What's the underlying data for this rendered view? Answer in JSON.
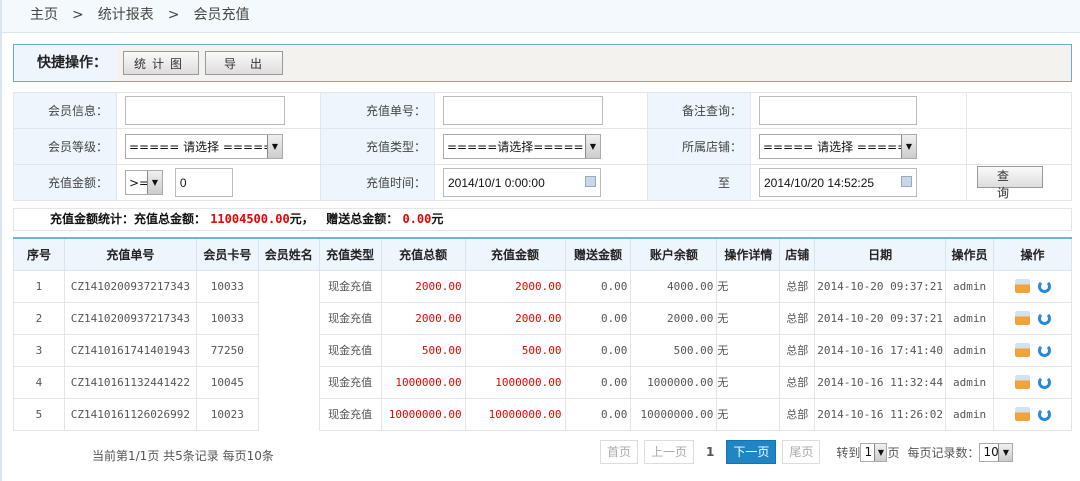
{
  "breadcrumb": [
    "主页",
    "统计报表",
    "会员充值"
  ],
  "breadcrumb_sep": ">",
  "quick": {
    "label": "快捷操作：",
    "chart_button": "统计图",
    "export_button": "导出"
  },
  "form": {
    "member_info_label": "会员信息：",
    "member_info_value": "",
    "order_no_label": "充值单号：",
    "order_no_value": "",
    "remark_label": "备注查询：",
    "remark_value": "",
    "level_label": "会员等级：",
    "level_value": "===== 请选择 =====",
    "type_label": "充值类型：",
    "type_value": "=====请选择=====",
    "store_label": "所属店铺：",
    "store_value": "===== 请选择 =====",
    "amount_label": "充值金额：",
    "amount_op": ">=",
    "amount_value": "0",
    "time_label": "充值时间：",
    "time_from": "2014/10/1 0:00:00",
    "to_label": "至",
    "time_to": "2014/10/20 14:52:25",
    "search_button": "查询"
  },
  "summary": {
    "label": "充值金额统计：充值总金额：",
    "total": "11004500.00",
    "unit1": "元，",
    "gift_label": "赠送总金额：",
    "gift": "0.00",
    "unit2": "元"
  },
  "table": {
    "headers": [
      "序号",
      "充值单号",
      "会员卡号",
      "会员姓名",
      "充值类型",
      "充值总额",
      "充值金额",
      "赠送金额",
      "账户余额",
      "操作详情",
      "店铺",
      "日期",
      "操作员",
      "操作"
    ],
    "rows": [
      [
        "1",
        "CZ1410200937217343",
        "10033",
        "",
        "现金充值",
        "2000.00",
        "2000.00",
        "0.00",
        "4000.00",
        "无",
        "总部",
        "2014-10-20 09:37:21",
        "admin"
      ],
      [
        "2",
        "CZ1410200937217343",
        "10033",
        "",
        "现金充值",
        "2000.00",
        "2000.00",
        "0.00",
        "2000.00",
        "无",
        "总部",
        "2014-10-20 09:37:21",
        "admin"
      ],
      [
        "3",
        "CZ1410161741401943",
        "77250",
        "",
        "现金充值",
        "500.00",
        "500.00",
        "0.00",
        "500.00",
        "无",
        "总部",
        "2014-10-16 17:41:40",
        "admin"
      ],
      [
        "4",
        "CZ1410161132441422",
        "10045",
        "",
        "现金充值",
        "1000000.00",
        "1000000.00",
        "0.00",
        "1000000.00",
        "无",
        "总部",
        "2014-10-16 11:32:44",
        "admin"
      ],
      [
        "5",
        "CZ1410161126026992",
        "10023",
        "",
        "现金充值",
        "10000000.00",
        "10000000.00",
        "0.00",
        "10000000.00",
        "无",
        "总部",
        "2014-10-16 11:26:02",
        "admin"
      ]
    ],
    "action_icons": [
      "print-icon",
      "refresh-icon"
    ]
  },
  "pager": {
    "info": "当前第1/1页 共5条记录 每页10条",
    "first": "首页",
    "prev": "上一页",
    "current": "1",
    "next": "下一页",
    "last": "尾页",
    "goto_label": "转到",
    "goto_value": "1",
    "page_unit": "页",
    "per_page_label": "每页记录数：",
    "per_page_value": "10"
  }
}
